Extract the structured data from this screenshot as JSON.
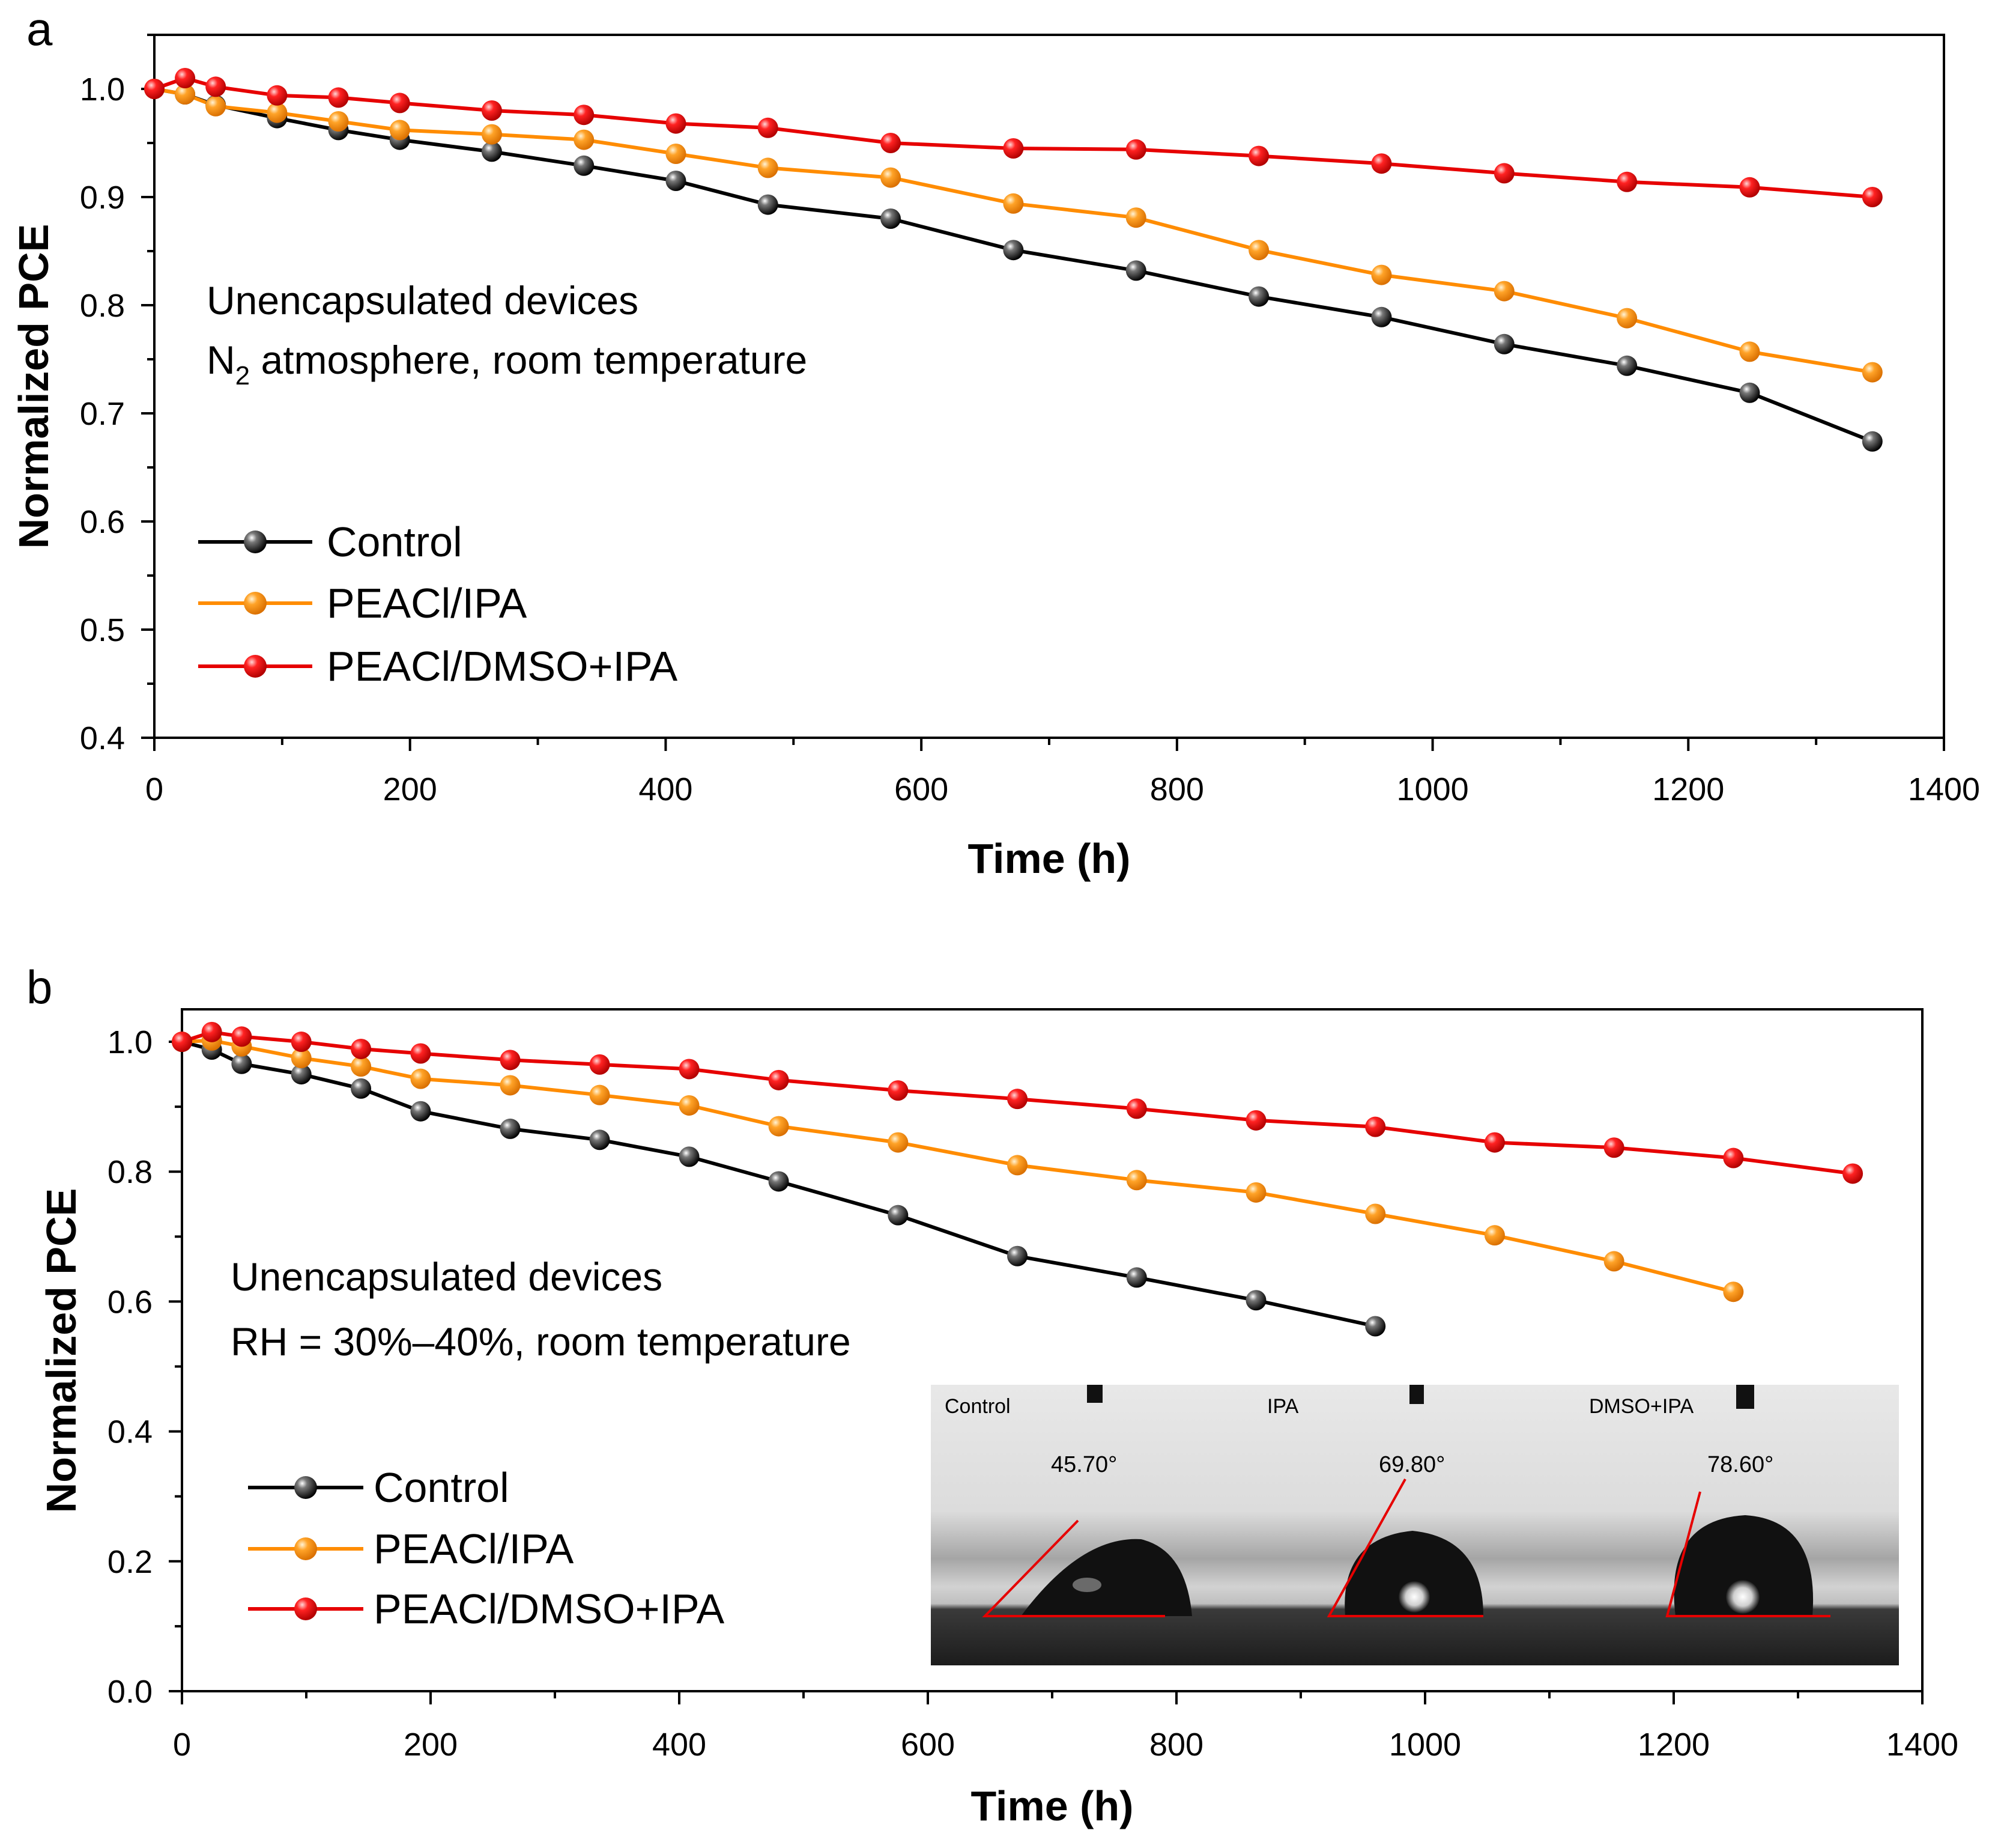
{
  "colors": {
    "control": "#000000",
    "ipa": "#ff8c00",
    "dmso": "#e60000",
    "axis": "#000000"
  },
  "chart_data": [
    {
      "type": "line",
      "panel_label": "a",
      "xlabel": "Time (h)",
      "ylabel": "Normalized PCE",
      "xlim": [
        0,
        1400
      ],
      "ylim": [
        0.4,
        1.05
      ],
      "xticks": [
        "0",
        "200",
        "400",
        "600",
        "800",
        "1000",
        "1200",
        "1400"
      ],
      "yticks": [
        "0.4",
        "0.5",
        "0.6",
        "0.7",
        "0.8",
        "0.9",
        "1.0"
      ],
      "annotation": [
        "Unencapsulated  devices",
        "N",
        "2",
        " atmosphere, room temperature"
      ],
      "legend_position": "bottom-left",
      "series": [
        {
          "name": "Control",
          "color": "#000000",
          "x": [
            0,
            24,
            48,
            96,
            144,
            192,
            264,
            336,
            408,
            480,
            576,
            672,
            768,
            864,
            960,
            1056,
            1152,
            1248,
            1344
          ],
          "y": [
            1.0,
            0.995,
            0.985,
            0.973,
            0.962,
            0.953,
            0.942,
            0.929,
            0.915,
            0.893,
            0.88,
            0.851,
            0.832,
            0.808,
            0.789,
            0.764,
            0.744,
            0.719,
            0.674
          ]
        },
        {
          "name": "PEACl/IPA",
          "color": "#ff8c00",
          "x": [
            0,
            24,
            48,
            96,
            144,
            192,
            264,
            336,
            408,
            480,
            576,
            672,
            768,
            864,
            960,
            1056,
            1152,
            1248,
            1344
          ],
          "y": [
            1.0,
            0.995,
            0.984,
            0.978,
            0.97,
            0.962,
            0.958,
            0.953,
            0.94,
            0.927,
            0.918,
            0.894,
            0.881,
            0.851,
            0.828,
            0.813,
            0.788,
            0.757,
            0.738
          ]
        },
        {
          "name": "PEACl/DMSO+IPA",
          "color": "#e60000",
          "x": [
            0,
            24,
            48,
            96,
            144,
            192,
            264,
            336,
            408,
            480,
            576,
            672,
            768,
            864,
            960,
            1056,
            1152,
            1248,
            1344
          ],
          "y": [
            1.0,
            1.01,
            1.002,
            0.994,
            0.992,
            0.987,
            0.98,
            0.976,
            0.968,
            0.964,
            0.95,
            0.945,
            0.944,
            0.938,
            0.931,
            0.922,
            0.914,
            0.909,
            0.9
          ]
        }
      ]
    },
    {
      "type": "line",
      "panel_label": "b",
      "xlabel": "Time (h)",
      "ylabel": "Normalized PCE",
      "xlim": [
        0,
        1400
      ],
      "ylim": [
        0.0,
        1.05
      ],
      "xticks": [
        "0",
        "200",
        "400",
        "600",
        "800",
        "1000",
        "1200",
        "1400"
      ],
      "yticks": [
        "0.0",
        "0.2",
        "0.4",
        "0.6",
        "0.8",
        "1.0"
      ],
      "annotation": [
        "Unencapsulated  devices",
        "RH = 30%–40%, room temperature"
      ],
      "legend_position": "bottom-left",
      "series": [
        {
          "name": "Control",
          "color": "#000000",
          "x": [
            0,
            24,
            48,
            96,
            144,
            192,
            264,
            336,
            408,
            480,
            576,
            672,
            768,
            864,
            960
          ],
          "y": [
            1.0,
            0.988,
            0.966,
            0.95,
            0.928,
            0.893,
            0.866,
            0.849,
            0.823,
            0.785,
            0.733,
            0.67,
            0.637,
            0.602,
            0.562
          ]
        },
        {
          "name": "PEACl/IPA",
          "color": "#ff8c00",
          "x": [
            0,
            24,
            48,
            96,
            144,
            192,
            264,
            336,
            408,
            480,
            576,
            672,
            768,
            864,
            960,
            1056,
            1152,
            1248
          ],
          "y": [
            1.0,
            1.002,
            0.993,
            0.975,
            0.962,
            0.943,
            0.933,
            0.918,
            0.902,
            0.87,
            0.845,
            0.81,
            0.787,
            0.768,
            0.735,
            0.702,
            0.662,
            0.615
          ]
        },
        {
          "name": "PEACl/DMSO+IPA",
          "color": "#e60000",
          "x": [
            0,
            24,
            48,
            96,
            144,
            192,
            264,
            336,
            408,
            480,
            576,
            672,
            768,
            864,
            960,
            1056,
            1152,
            1248,
            1344
          ],
          "y": [
            1.0,
            1.015,
            1.008,
            1.0,
            0.989,
            0.982,
            0.972,
            0.965,
            0.958,
            0.941,
            0.925,
            0.912,
            0.897,
            0.879,
            0.869,
            0.845,
            0.837,
            0.821,
            0.797
          ]
        }
      ],
      "inset": {
        "panels": [
          {
            "label": "Control",
            "angle": "45.70°"
          },
          {
            "label": "IPA",
            "angle": "69.80°"
          },
          {
            "label": "DMSO+IPA",
            "angle": "78.60°"
          }
        ]
      }
    }
  ]
}
